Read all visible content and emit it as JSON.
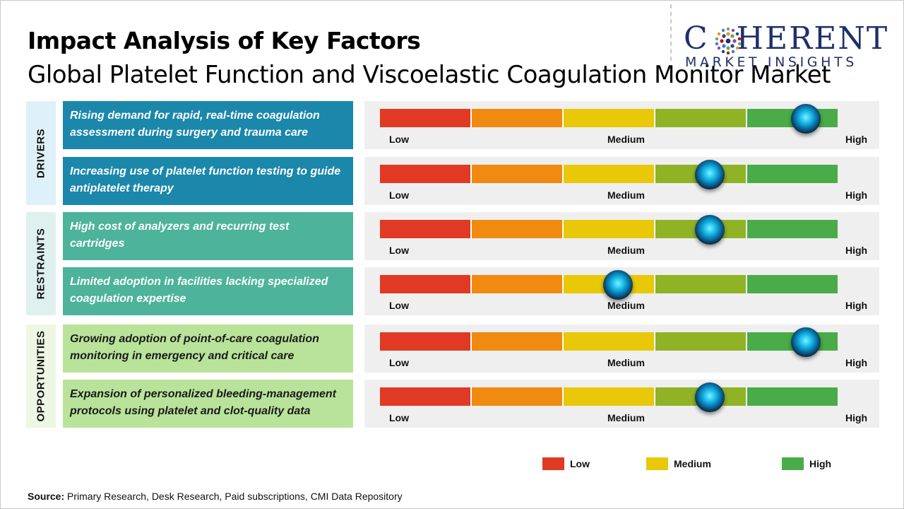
{
  "header": {
    "title": "Impact Analysis of Key Factors",
    "subtitle": "Global Platelet Function and Viscoelastic Coagulation Monitor Market"
  },
  "logo": {
    "main_text": "COHERENT",
    "sub_text": "MARKET INSIGHTS"
  },
  "colors": {
    "drivers_factor": "#1b87ab",
    "drivers_category": "#dff1f8",
    "restraints_factor": "#4db39a",
    "restraints_category": "#dff1ee",
    "opportunities_factor": "#b9e39a",
    "opportunities_category": "#edf7e4",
    "scale": [
      "#e03a24",
      "#f08a10",
      "#e8c808",
      "#90b326",
      "#4aac48"
    ]
  },
  "chart_data": {
    "type": "table",
    "scale_labels": {
      "low": "Low",
      "medium": "Medium",
      "high": "High"
    },
    "categories": [
      {
        "name": "DRIVERS",
        "factors": [
          {
            "text": "Rising demand for rapid, real-time coagulation assessment during surgery and trauma care",
            "impact": 0.93
          },
          {
            "text": "Increasing use of platelet function testing to guide antiplatelet therapy",
            "impact": 0.72
          }
        ]
      },
      {
        "name": "RESTRAINTS",
        "factors": [
          {
            "text": "High cost of analyzers and recurring test cartridges",
            "impact": 0.72
          },
          {
            "text": "Limited adoption in facilities lacking specialized coagulation expertise",
            "impact": 0.52
          }
        ]
      },
      {
        "name": "OPPORTUNITIES",
        "factors": [
          {
            "text": "Growing adoption of point-of-care coagulation monitoring in emergency and critical care",
            "impact": 0.93
          },
          {
            "text": "Expansion of personalized bleeding-management protocols using platelet and clot-quality data",
            "impact": 0.72
          }
        ]
      }
    ]
  },
  "legend": [
    {
      "label": "Low",
      "color": "#e03a24"
    },
    {
      "label": "Medium",
      "color": "#e8c808"
    },
    {
      "label": "High",
      "color": "#4aac48"
    }
  ],
  "footer": {
    "source_label": "Source:",
    "source_text": " Primary Research, Desk Research, Paid subscriptions, CMI Data Repository"
  }
}
